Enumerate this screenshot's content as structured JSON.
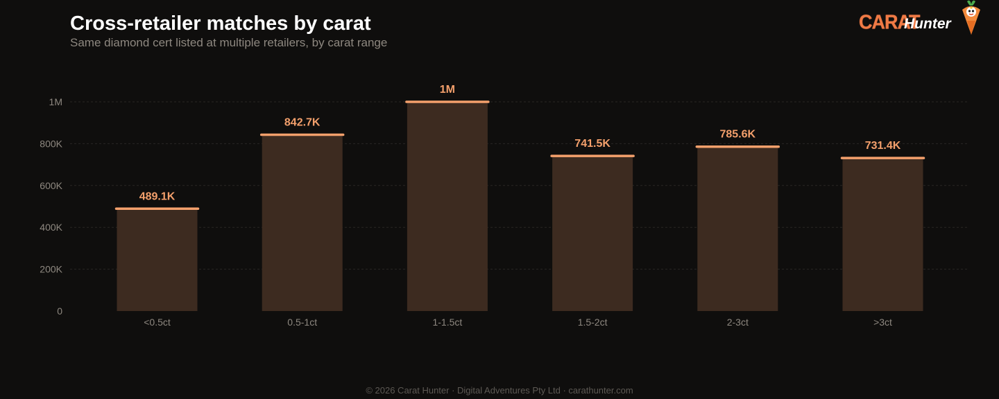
{
  "header": {
    "title": "Cross-retailer matches by carat",
    "subtitle": "Same diamond cert listed at multiple retailers, by carat range"
  },
  "logo": {
    "word1": "CARAT",
    "word2": "Hunter",
    "mascot_icon": "carrot-mascot-icon"
  },
  "footer": {
    "text": "© 2026 Carat Hunter · Digital Adventures Pty Ltd · carathunter.com"
  },
  "colors": {
    "background": "#0f0e0d",
    "bar_fill": "#3d2b20",
    "bar_cap": "#f4a06c",
    "value_label": "#f4a06c",
    "axis_text": "#8e8880",
    "grid": "#2a2724"
  },
  "chart_data": {
    "type": "bar",
    "title": "Cross-retailer matches by carat",
    "subtitle": "Same diamond cert listed at multiple retailers, by carat range",
    "categories": [
      "<0.5ct",
      "0.5-1ct",
      "1-1.5ct",
      "1.5-2ct",
      "2-3ct",
      ">3ct"
    ],
    "values": [
      489100,
      842700,
      1000000,
      741500,
      785600,
      731400
    ],
    "value_labels": [
      "489.1K",
      "842.7K",
      "1M",
      "741.5K",
      "785.6K",
      "731.4K"
    ],
    "ylim": [
      0,
      1000000
    ],
    "yticks": [
      0,
      200000,
      400000,
      600000,
      800000,
      1000000
    ],
    "ytick_labels": [
      "0",
      "200K",
      "400K",
      "600K",
      "800K",
      "1M"
    ],
    "grid": true,
    "grid_style": "dashed",
    "xlabel": "",
    "ylabel": ""
  }
}
